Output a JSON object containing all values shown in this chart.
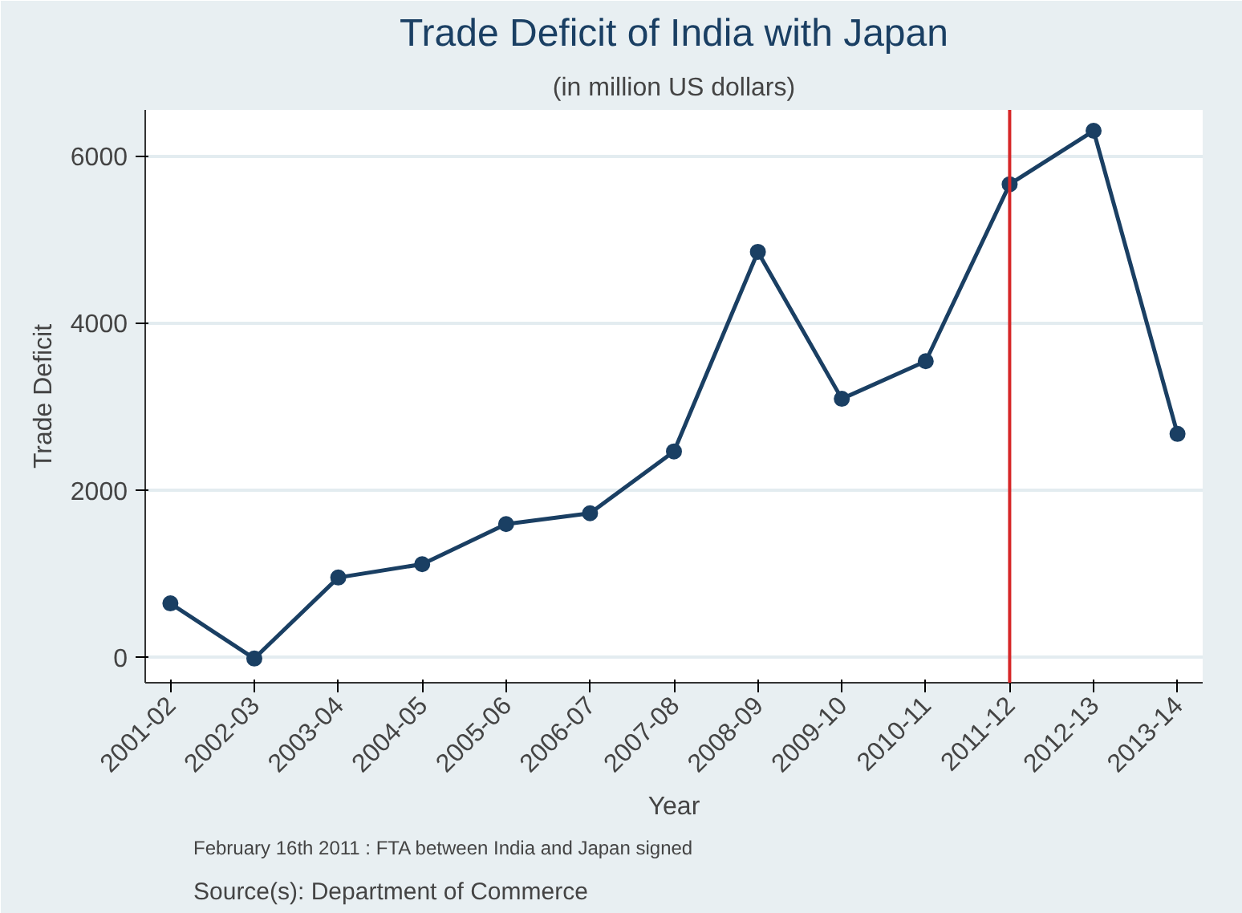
{
  "chart_data": {
    "type": "line",
    "title": "Trade Deficit of India with Japan",
    "subtitle": "(in million US dollars)",
    "xlabel": "Year",
    "ylabel": "Trade Deficit",
    "categories": [
      "2001-02",
      "2002-03",
      "2003-04",
      "2004-05",
      "2005-06",
      "2006-07",
      "2007-08",
      "2008-09",
      "2009-10",
      "2010-11",
      "2011-12",
      "2012-13",
      "2013-14"
    ],
    "series": [
      {
        "color": "#1a3f63",
        "values": [
          640,
          -20,
          950,
          1110,
          1590,
          1720,
          2460,
          4850,
          3090,
          3540,
          5660,
          6300,
          2670
        ]
      }
    ],
    "ylim": [
      -310,
      6550
    ],
    "yticks": [
      0,
      2000,
      4000,
      6000
    ],
    "grid": "y",
    "marker": "circle",
    "line_style": "solid",
    "ref_lines": [
      {
        "axis": "x",
        "value": "2011-12",
        "color": "#d62728"
      }
    ],
    "annotations": [
      "February 16th 2011 : FTA between India and Japan signed",
      "Source(s): Department of Commerce"
    ]
  }
}
